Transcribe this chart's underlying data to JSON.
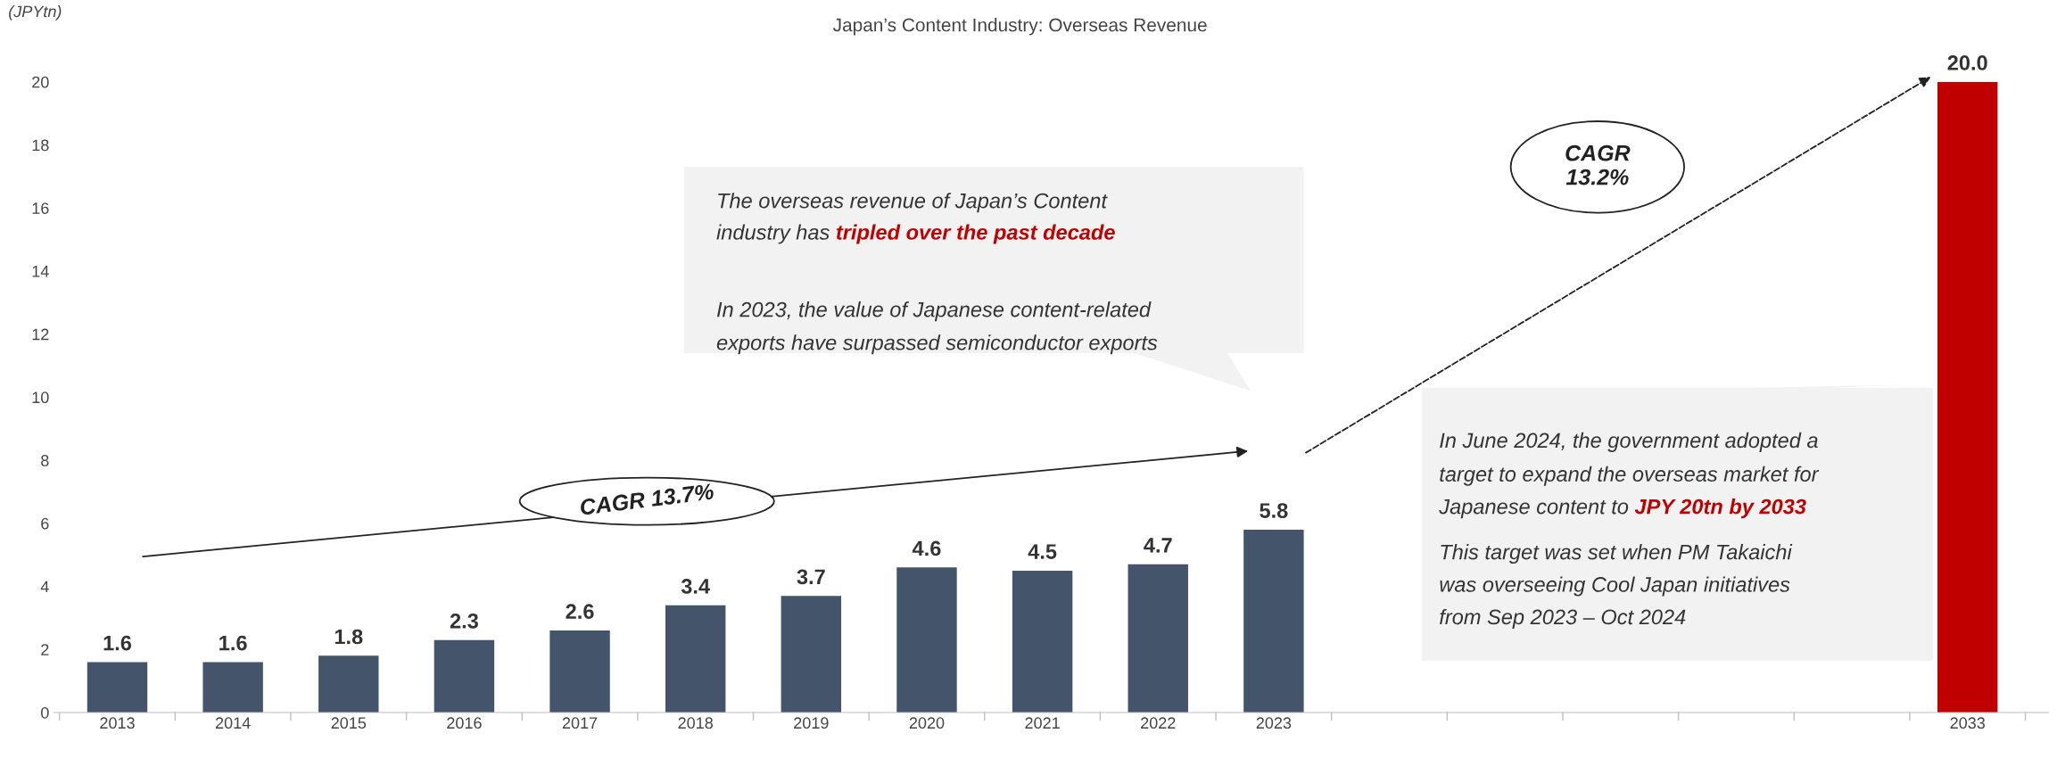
{
  "chart_data": {
    "type": "bar",
    "title": "Japan’s Content Industry: Overseas Revenue",
    "ylabel": "(JPYtn)",
    "categories": [
      "2013",
      "2014",
      "2015",
      "2016",
      "2017",
      "2018",
      "2019",
      "2020",
      "2021",
      "2022",
      "2023",
      null,
      null,
      null,
      null,
      null,
      "2033"
    ],
    "values": [
      1.6,
      1.6,
      1.8,
      2.3,
      2.6,
      3.4,
      3.7,
      4.6,
      4.5,
      4.7,
      5.8,
      null,
      null,
      null,
      null,
      null,
      20.0
    ],
    "colors": [
      "#44546a",
      "#44546a",
      "#44546a",
      "#44546a",
      "#44546a",
      "#44546a",
      "#44546a",
      "#44546a",
      "#44546a",
      "#44546a",
      "#44546a",
      "#44546a",
      "#44546a",
      "#44546a",
      "#44546a",
      "#44546a",
      "#c00000"
    ],
    "value_labels": [
      "1.6",
      "1.6",
      "1.8",
      "2.3",
      "2.6",
      "3.4",
      "3.7",
      "4.6",
      "4.5",
      "4.7",
      "5.8",
      null,
      null,
      null,
      null,
      null,
      "20.0"
    ],
    "ylim": [
      0,
      20
    ],
    "yticks": [
      0,
      2,
      4,
      6,
      8,
      10,
      12,
      14,
      16,
      18,
      20
    ],
    "grid": false,
    "legend": false,
    "annotations": [
      "The overseas revenue of Japan’s Content",
      "industry has",
      "tripled over the past decade",
      "In 2023, the value of Japanese content-related",
      "exports have surpassed semiconductor exports",
      "In June 2024, the government adopted a",
      "target to expand the overseas market for",
      "Japanese content to",
      "JPY 20tn by 2033",
      "This target was set when PM Takaichi",
      "was overseeing Cool Japan initiatives",
      "from Sep 2023 – Oct 2024",
      "CAGR 13.7%",
      "CAGR\n13.2%"
    ]
  }
}
